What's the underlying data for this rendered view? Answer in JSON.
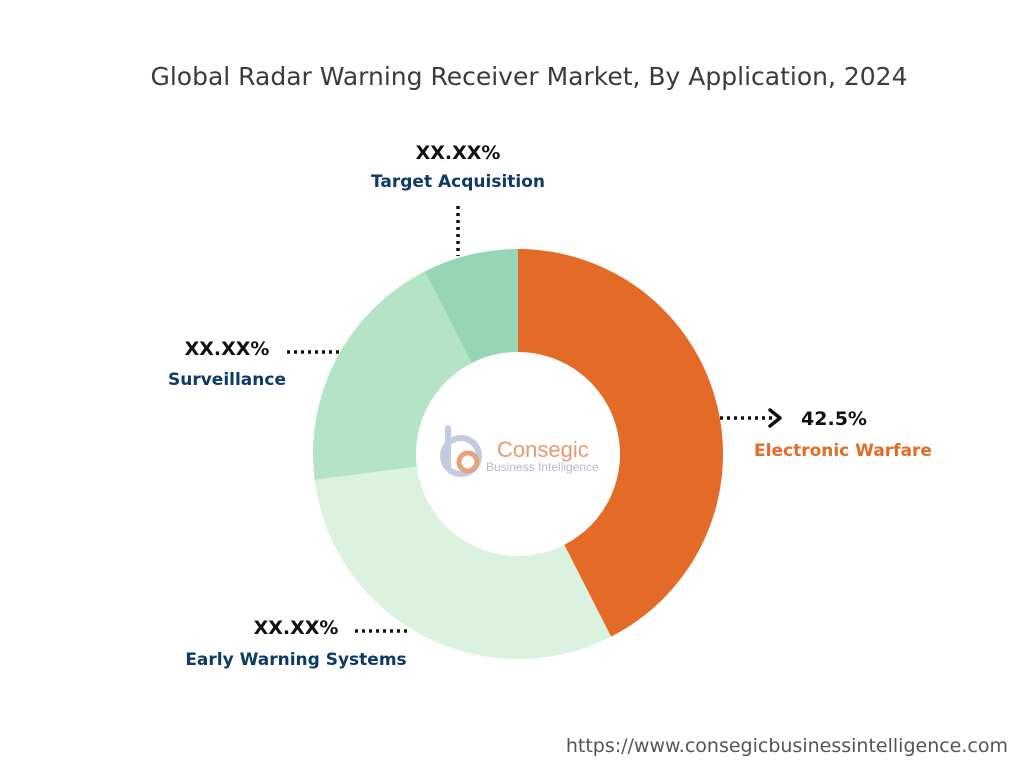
{
  "chart_data": {
    "type": "pie",
    "title": "Global Radar Warning Receiver Market, By Application, 2024",
    "donut": true,
    "categories": [
      "Electronic Warfare",
      "Early Warning Systems",
      "Surveillance",
      "Target Acquisition"
    ],
    "values": [
      42.5,
      30.5,
      19.5,
      7.5
    ],
    "value_labels": [
      "42.5%",
      "XX.XX%",
      "XX.XX%",
      "XX.XX%"
    ],
    "colors": [
      "#e46a27",
      "#daf2df",
      "#b4e4c6",
      "#96d6b4"
    ],
    "label_colors": [
      "#e46a27",
      "#0d3a66",
      "#0d3a66",
      "#0d3a66"
    ]
  },
  "watermark": {
    "logo_word": "Consegic",
    "logo_sub": "Business Intelligence"
  },
  "footer_url": "https://www.consegicbusinessintelligence.com"
}
